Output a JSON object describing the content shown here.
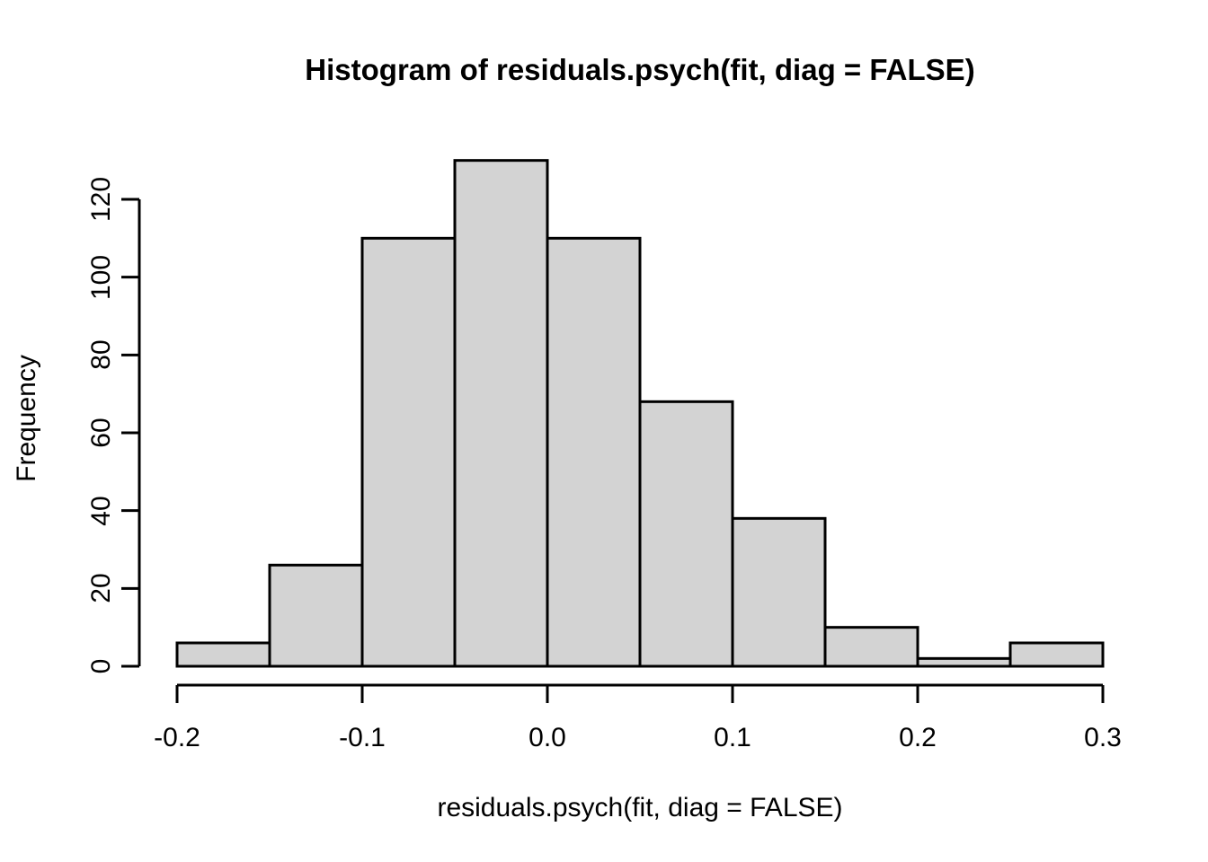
{
  "chart_data": {
    "type": "bar",
    "subtype": "histogram",
    "title": "Histogram of residuals.psych(fit, diag = FALSE)",
    "xlabel": "residuals.psych(fit, diag = FALSE)",
    "ylabel": "Frequency",
    "breaks": [
      -0.2,
      -0.15,
      -0.1,
      -0.05,
      0.0,
      0.05,
      0.1,
      0.15,
      0.2,
      0.25,
      0.3
    ],
    "counts": [
      6,
      26,
      110,
      130,
      110,
      68,
      38,
      10,
      2,
      6
    ],
    "xlim": [
      -0.2,
      0.3
    ],
    "ylim": [
      0,
      130
    ],
    "x_ticks": {
      "values": [
        -0.2,
        -0.1,
        0.0,
        0.1,
        0.2,
        0.3
      ],
      "labels": [
        "-0.2",
        "-0.1",
        "0.0",
        "0.1",
        "0.2",
        "0.3"
      ]
    },
    "y_ticks": {
      "values": [
        0,
        20,
        40,
        60,
        80,
        100,
        120
      ],
      "labels": [
        "0",
        "20",
        "40",
        "60",
        "80",
        "100",
        "120"
      ]
    },
    "grid": false,
    "legend": null,
    "colors": {
      "bar_fill": "#d3d3d3",
      "bar_stroke": "#000000",
      "axis": "#000000",
      "text": "#000000",
      "background": "#ffffff"
    }
  }
}
